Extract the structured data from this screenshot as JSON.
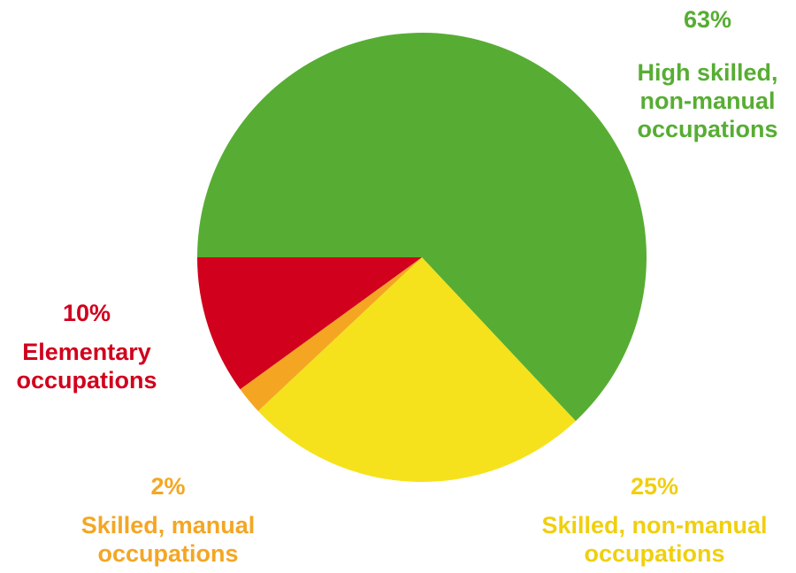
{
  "chart_data": {
    "type": "pie",
    "slices": [
      {
        "label": "High skilled, non-manual occupations",
        "line1": "High skilled,",
        "line2": "non-manual",
        "line3": "occupations",
        "percent_text": "63%",
        "value": 63,
        "color": "#57ad33"
      },
      {
        "label": "Skilled, non-manual occupations",
        "line1": "Skilled, non-manual",
        "line2": "occupations",
        "percent_text": "25%",
        "value": 25,
        "color": "#f5e21c"
      },
      {
        "label": "Skilled, manual occupations",
        "line1": "Skilled, manual",
        "line2": "occupations",
        "percent_text": "2%",
        "value": 2,
        "color": "#f4a623"
      },
      {
        "label": "Elementary occupations",
        "line1": "Elementary",
        "line2": "occupations",
        "percent_text": "10%",
        "value": 10,
        "color": "#d1001d"
      }
    ],
    "start_angle_deg": 180,
    "direction": "clockwise",
    "legend": "none"
  },
  "colors": {
    "high_skilled": "#57ad33",
    "skilled_non_manual_text": "#f0cf0f",
    "skilled_manual": "#f4a623",
    "elementary": "#d1001d"
  }
}
